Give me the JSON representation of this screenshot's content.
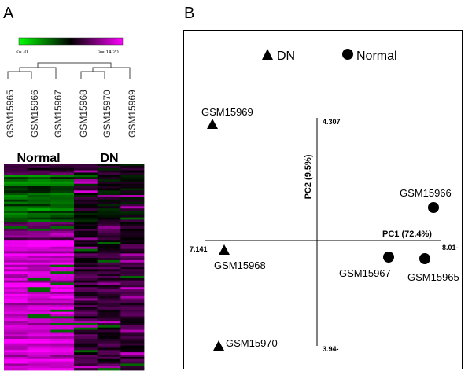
{
  "panel_a": {
    "label": "A",
    "color_scale": {
      "min_label": "<= -0",
      "max_label": ">= 14.20",
      "low_color": "#00ff00",
      "mid_color": "#000000",
      "high_color": "#ff00ff"
    },
    "samples": [
      "GSM15965",
      "GSM15966",
      "GSM15967",
      "GSM15968",
      "GSM15970",
      "GSM15969"
    ],
    "group_labels": [
      "Normal",
      "DN"
    ]
  },
  "panel_b": {
    "label": "B",
    "legend": [
      {
        "shape": "triangle",
        "label": "DN"
      },
      {
        "shape": "circle",
        "label": "Normal"
      }
    ],
    "axes": {
      "pc1_label": "PC1 (72.4%)",
      "pc2_label": "PC2 (9.5%)",
      "pc1_min_label": "7.141",
      "pc1_max_label": "8.01-",
      "pc2_max_label": "4.307",
      "pc2_min_label": "3.94-"
    },
    "points": [
      {
        "label": "GSM15969",
        "shape": "triangle"
      },
      {
        "label": "GSM15968",
        "shape": "triangle"
      },
      {
        "label": "GSM15970",
        "shape": "triangle"
      },
      {
        "label": "GSM15966",
        "shape": "circle"
      },
      {
        "label": "GSM15967",
        "shape": "circle"
      },
      {
        "label": "GSM15965",
        "shape": "circle"
      }
    ]
  }
}
